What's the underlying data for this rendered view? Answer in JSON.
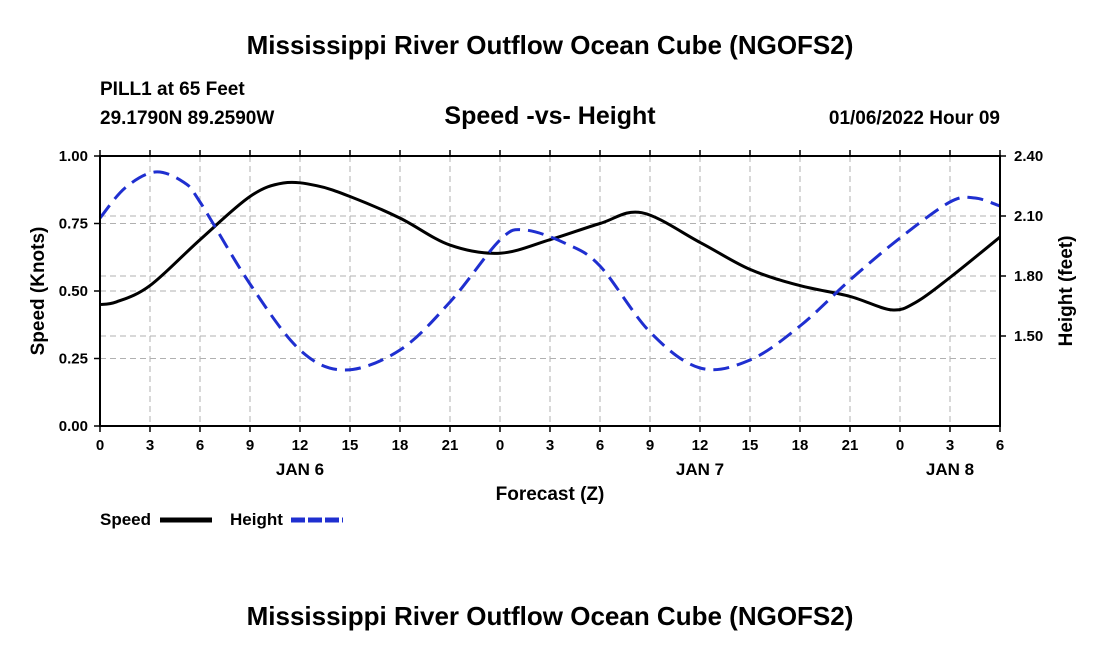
{
  "chart_data": {
    "type": "line",
    "title": "Mississippi River Outflow Ocean Cube (NGOFS2)",
    "footer_title": "Mississippi River Outflow Ocean Cube (NGOFS2)",
    "subtitle": "Speed -vs- Height",
    "station": "PILL1 at 65 Feet",
    "coordinates": "29.1790N  89.2590W",
    "datetime": "01/06/2022 Hour 09",
    "xlabel": "Forecast (Z)",
    "ylabel": "Speed (Knots)",
    "y2label": "Height (feet)",
    "xlim": [
      0,
      54
    ],
    "ylim": [
      0,
      1
    ],
    "y2lim": [
      1.05,
      2.4
    ],
    "x_ticks": [
      0,
      3,
      6,
      9,
      12,
      15,
      18,
      21,
      24,
      27,
      30,
      33,
      36,
      39,
      42,
      45,
      48,
      51,
      54
    ],
    "x_tick_labels": [
      "0",
      "3",
      "6",
      "9",
      "12",
      "15",
      "18",
      "21",
      "0",
      "3",
      "6",
      "9",
      "12",
      "15",
      "18",
      "21",
      "0",
      "3",
      "6"
    ],
    "y_ticks": [
      0,
      0.25,
      0.5,
      0.75,
      1.0
    ],
    "y_tick_labels": [
      "0.00",
      "0.25",
      "0.50",
      "0.75",
      "1.00"
    ],
    "y2_ticks": [
      1.5,
      1.8,
      2.1,
      2.4
    ],
    "y2_tick_labels": [
      "1.50",
      "1.80",
      "2.10",
      "2.40"
    ],
    "date_labels": [
      {
        "x": 12,
        "label": "JAN 6"
      },
      {
        "x": 36,
        "label": "JAN 7"
      },
      {
        "x": 51,
        "label": "JAN 8"
      }
    ],
    "grid": true,
    "legend": [
      "Speed",
      "Height"
    ],
    "series": [
      {
        "name": "Speed",
        "axis": "left",
        "color": "#000000",
        "style": "solid",
        "x": [
          0,
          1,
          3,
          6,
          9,
          11,
          13,
          15,
          18,
          21,
          24,
          27,
          30,
          32.5,
          36,
          39,
          42,
          45,
          47.5,
          49,
          51,
          54
        ],
        "values": [
          0.45,
          0.46,
          0.52,
          0.69,
          0.85,
          0.9,
          0.89,
          0.85,
          0.77,
          0.67,
          0.64,
          0.69,
          0.75,
          0.79,
          0.68,
          0.58,
          0.52,
          0.48,
          0.43,
          0.46,
          0.55,
          0.7
        ]
      },
      {
        "name": "Height",
        "axis": "right",
        "color": "#1f2fd0",
        "style": "dashed",
        "x": [
          0,
          1.5,
          3.3,
          5,
          6,
          9,
          12,
          14.7,
          18,
          21,
          24,
          25.5,
          28,
          30,
          33,
          36,
          39,
          42,
          45,
          48,
          51,
          52.5,
          54
        ],
        "values": [
          2.09,
          2.24,
          2.32,
          2.27,
          2.17,
          1.76,
          1.43,
          1.33,
          1.43,
          1.67,
          1.98,
          2.03,
          1.96,
          1.85,
          1.52,
          1.34,
          1.38,
          1.55,
          1.78,
          1.99,
          2.17,
          2.19,
          2.15
        ]
      }
    ]
  }
}
